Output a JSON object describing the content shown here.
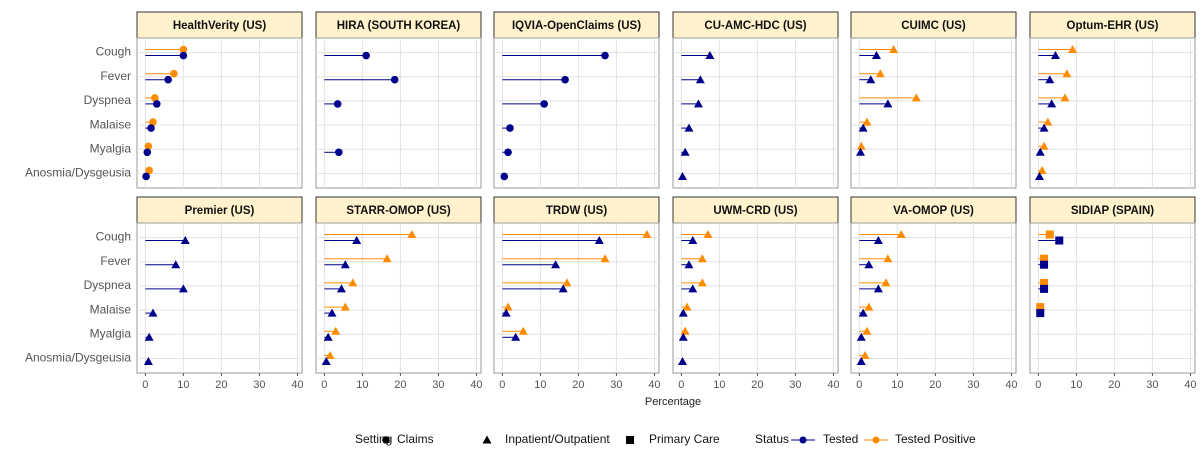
{
  "chart_data": {
    "type": "lollipop",
    "xlabel": "Percentage",
    "categories": [
      "Cough",
      "Fever",
      "Dyspnea",
      "Malaise",
      "Myalgia",
      "Anosmia/Dysgeusia"
    ],
    "xlim": [
      -2.2,
      41.2
    ],
    "xticks": [
      0,
      10,
      20,
      30,
      40
    ],
    "grid": true,
    "legend": {
      "setting_title": "Setting",
      "settings": [
        "Claims",
        "Inpatient/Outpatient",
        "Primary Care"
      ],
      "status_title": "Status",
      "statuses": [
        {
          "name": "Tested",
          "color": "#00008b"
        },
        {
          "name": "Tested Positive",
          "color": "#ff8c00"
        }
      ]
    },
    "panels": [
      {
        "title": "HealthVerity (US)",
        "setting": 0,
        "tested": [
          10,
          6,
          3,
          1.5,
          0.5,
          0.2
        ],
        "tested_positive": [
          10,
          7.5,
          2.5,
          2,
          0.8,
          1
        ]
      },
      {
        "title": "HIRA (SOUTH KOREA)",
        "setting": 0,
        "tested": [
          11,
          18.5,
          3.5,
          null,
          3.8,
          null
        ],
        "tested_positive": [
          null,
          null,
          null,
          null,
          null,
          null
        ]
      },
      {
        "title": "IQVIA-OpenClaims (US)",
        "setting": 0,
        "tested": [
          27,
          16.5,
          11,
          2,
          1.5,
          0.5
        ],
        "tested_positive": [
          null,
          null,
          null,
          null,
          null,
          null
        ]
      },
      {
        "title": "CU-AMC-HDC (US)",
        "setting": 1,
        "tested": [
          7.5,
          5,
          4.5,
          2,
          1,
          0.3
        ],
        "tested_positive": [
          null,
          null,
          null,
          null,
          null,
          null
        ]
      },
      {
        "title": "CUIMC (US)",
        "setting": 1,
        "tested": [
          4.5,
          3,
          7.5,
          1,
          0.3,
          null
        ],
        "tested_positive": [
          9,
          5.5,
          15,
          2,
          0.5,
          null
        ]
      },
      {
        "title": "Optum-EHR (US)",
        "setting": 1,
        "tested": [
          4.5,
          3,
          3.5,
          1.5,
          0.5,
          0.3
        ],
        "tested_positive": [
          9,
          7.5,
          7,
          2.5,
          1.5,
          1
        ]
      },
      {
        "title": "Premier (US)",
        "setting": 1,
        "tested": [
          10.5,
          8,
          10,
          2,
          1,
          0.8
        ],
        "tested_positive": [
          null,
          null,
          null,
          null,
          null,
          null
        ]
      },
      {
        "title": "STARR-OMOP (US)",
        "setting": 1,
        "tested": [
          8.5,
          5.5,
          4.5,
          2,
          1,
          0.5
        ],
        "tested_positive": [
          23,
          16.5,
          7.5,
          5.5,
          3,
          1.5
        ]
      },
      {
        "title": "TRDW (US)",
        "setting": 1,
        "tested": [
          25.5,
          14,
          16,
          1,
          3.5,
          null
        ],
        "tested_positive": [
          38,
          27,
          17,
          1.5,
          5.5,
          null
        ]
      },
      {
        "title": "UWM-CRD (US)",
        "setting": 1,
        "tested": [
          3,
          2,
          3,
          0.5,
          0.5,
          0.3
        ],
        "tested_positive": [
          7,
          5.5,
          5.5,
          1.5,
          1,
          null
        ]
      },
      {
        "title": "VA-OMOP (US)",
        "setting": 1,
        "tested": [
          5,
          2.5,
          5,
          1,
          0.5,
          0.5
        ],
        "tested_positive": [
          11,
          7.5,
          7,
          2.5,
          2,
          1.5
        ]
      },
      {
        "title": "SIDIAP (SPAIN)",
        "setting": 2,
        "tested": [
          5.5,
          1.5,
          1.5,
          0.5,
          null,
          null
        ],
        "tested_positive": [
          3,
          1.5,
          1.5,
          0.5,
          null,
          null
        ]
      }
    ]
  }
}
